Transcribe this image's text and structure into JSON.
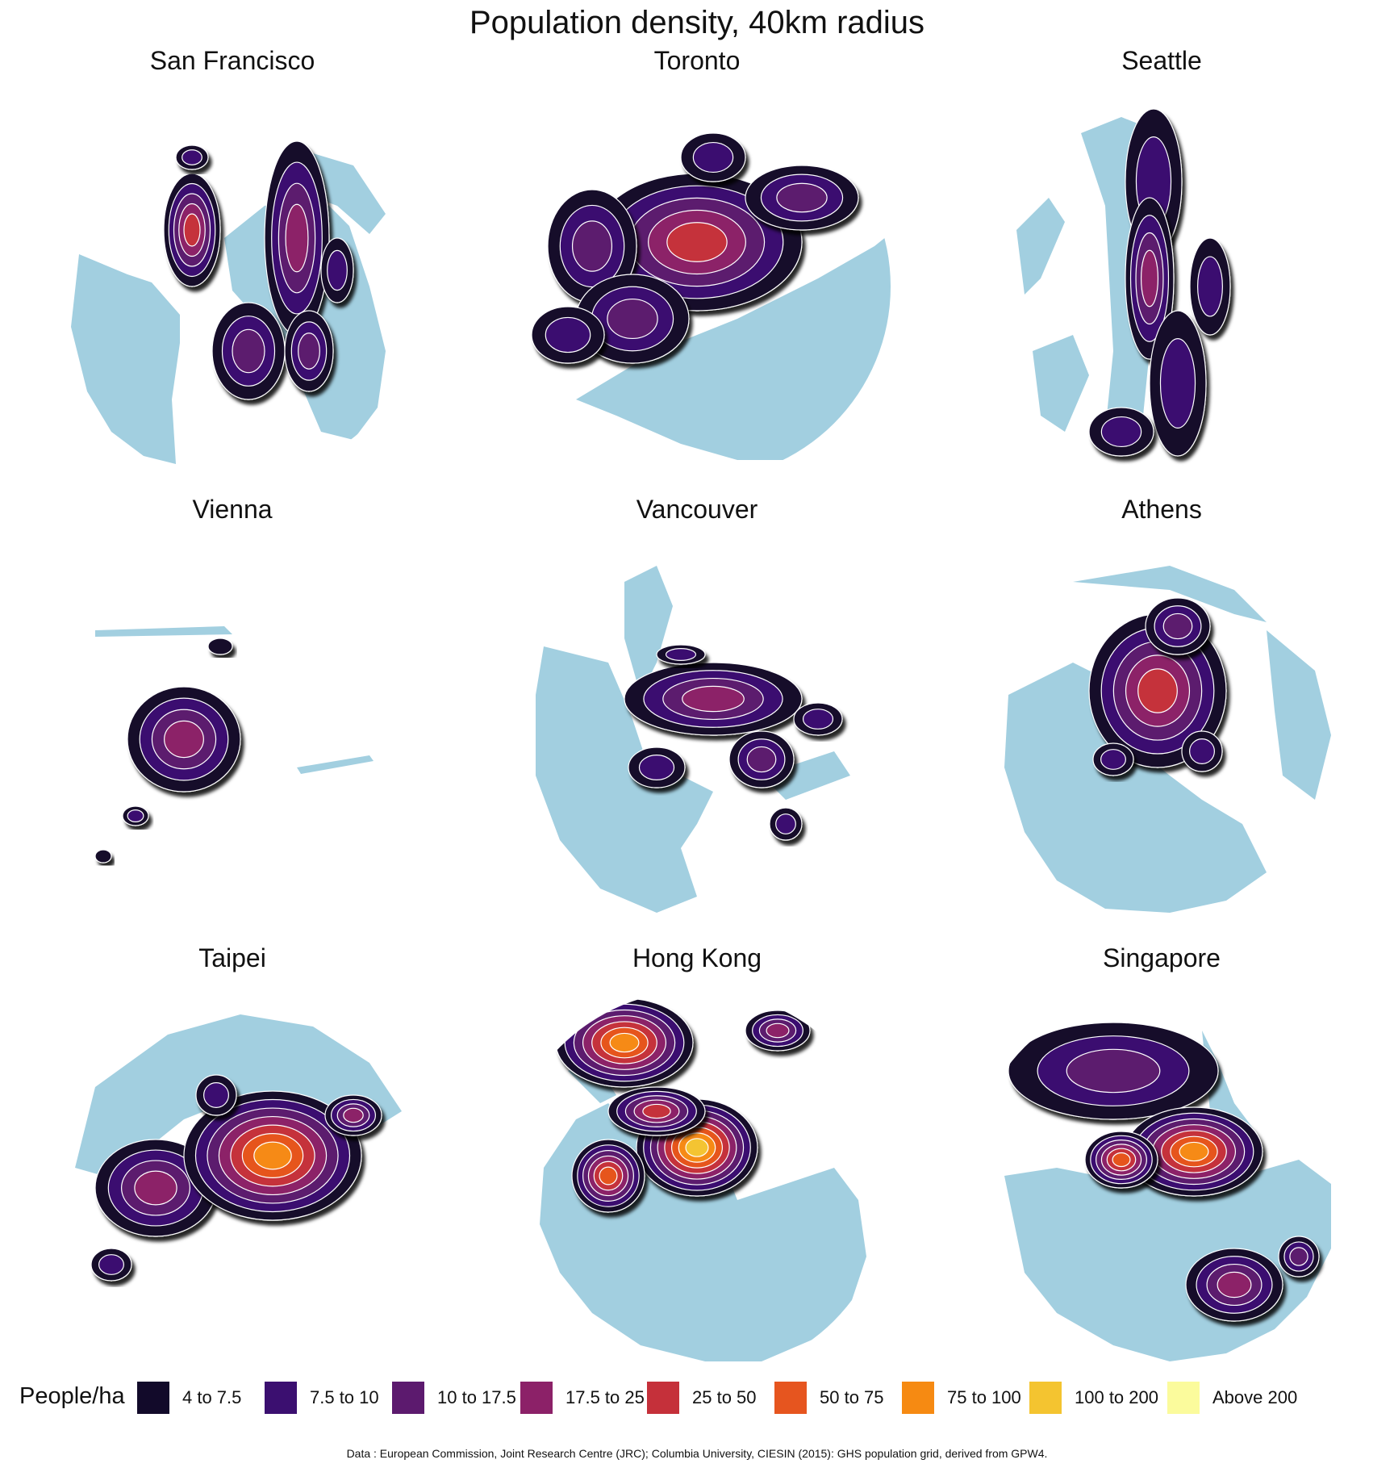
{
  "title": "Population density, 40km radius",
  "colors": {
    "water": "#a2cfe0",
    "bins": [
      "#120a2a",
      "#3b0f70",
      "#5c1a6e",
      "#8c2168",
      "#c5303a",
      "#e6551f",
      "#f68a12",
      "#f4c430",
      "#fbfb9c"
    ]
  },
  "cities": [
    {
      "name": "San Francisco",
      "levels": [
        0,
        1,
        2,
        3,
        4
      ]
    },
    {
      "name": "Toronto",
      "levels": [
        0,
        1,
        2,
        3,
        4
      ]
    },
    {
      "name": "Seattle",
      "levels": [
        0,
        1,
        2,
        3
      ]
    },
    {
      "name": "Vienna",
      "levels": [
        0,
        1,
        2,
        3
      ]
    },
    {
      "name": "Vancouver",
      "levels": [
        0,
        1,
        2,
        3,
        4
      ]
    },
    {
      "name": "Athens",
      "levels": [
        0,
        1,
        2,
        3,
        4
      ]
    },
    {
      "name": "Taipei",
      "levels": [
        0,
        1,
        2,
        3,
        4,
        5,
        6
      ]
    },
    {
      "name": "Hong Kong",
      "levels": [
        0,
        1,
        2,
        3,
        4,
        5,
        6,
        7
      ]
    },
    {
      "name": "Singapore",
      "levels": [
        0,
        1,
        2,
        3,
        4,
        5,
        6,
        7
      ]
    }
  ],
  "legend": {
    "title": "People/ha",
    "items": [
      "4 to 7.5",
      "7.5 to 10",
      "10 to 17.5",
      "17.5 to 25",
      "25 to 50",
      "50 to 75",
      "75 to 100",
      "100 to 200",
      "Above 200"
    ]
  },
  "source": "Data : European Commission, Joint Research Centre (JRC); Columbia University, CIESIN (2015): GHS population grid, derived from GPW4."
}
